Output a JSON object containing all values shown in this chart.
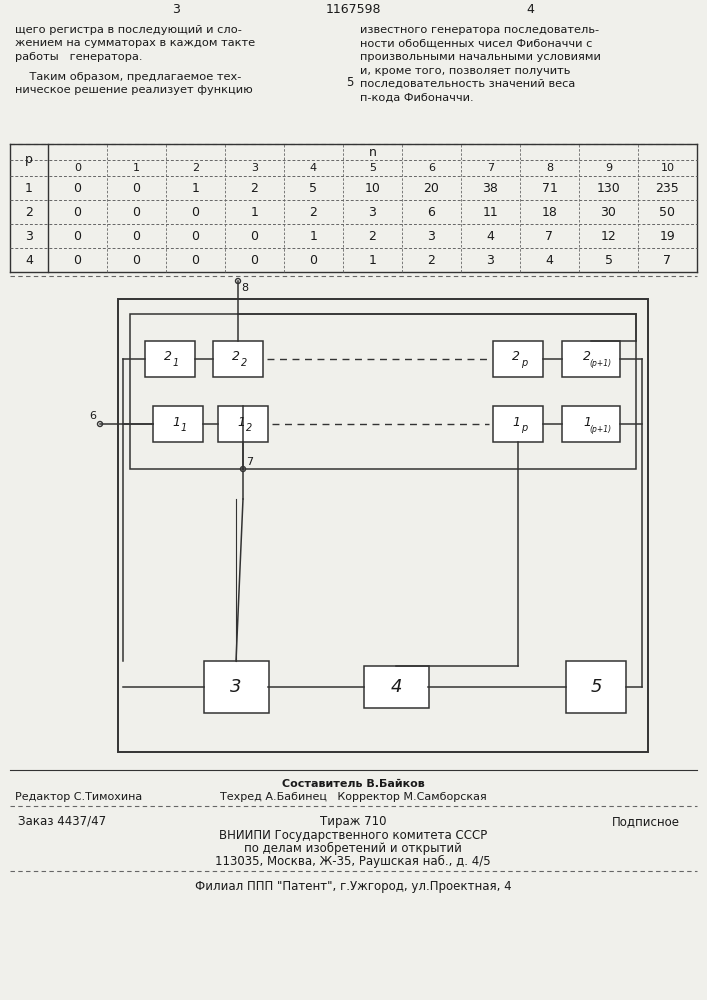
{
  "page_number_left": "3",
  "patent_number": "1167598",
  "page_number_right": "4",
  "text_left": [
    "щего регистра в последующий и сло-",
    "жением на сумматорах в каждом такте",
    "работы   генератора."
  ],
  "text_left2": [
    "    Таким образом, предлагаемое тех-",
    "ническое решение реализует функцию"
  ],
  "claim_number": "5",
  "text_right": [
    "известного генератора последователь-",
    "ности обобщенных чисел Фибоначчи с",
    "произвольными начальными условиями",
    "и, кроме того, позволяет получить",
    "последовательность значений веса",
    "п-кода Фибоначчи."
  ],
  "table_header_n": "n",
  "table_header_p": "p",
  "table_col_headers": [
    0,
    1,
    2,
    3,
    4,
    5,
    6,
    7,
    8,
    9,
    10
  ],
  "table_rows": [
    [
      1,
      0,
      0,
      1,
      2,
      5,
      10,
      20,
      38,
      71,
      130,
      235
    ],
    [
      2,
      0,
      0,
      0,
      1,
      2,
      3,
      6,
      11,
      18,
      30,
      50
    ],
    [
      3,
      0,
      0,
      0,
      0,
      1,
      2,
      3,
      4,
      7,
      12,
      19
    ],
    [
      4,
      0,
      0,
      0,
      0,
      0,
      1,
      2,
      3,
      4,
      5,
      7
    ]
  ],
  "editor_line": "Редактор С.Тимохина",
  "compiler_line": "Составитель В.Байков",
  "techred_line": "Техред А.Бабинец   Корректор М.Самборская",
  "order_line1": "Заказ 4437/47",
  "order_line2": "Тираж 710",
  "order_line3": "Подписное",
  "vniip_lines": [
    "ВНИИПИ Государственного комитета СССР",
    "по делам изобретений и открытий",
    "113035, Москва, Ж-35, Раушская наб., д. 4/5"
  ],
  "filial_line": "Филиал ППП \"Патент\", г.Ужгород, ул.Проектная, 4",
  "bg_color": "#f0f0eb",
  "text_color": "#1a1a1a",
  "line_color": "#333333",
  "dash_color": "#666666"
}
